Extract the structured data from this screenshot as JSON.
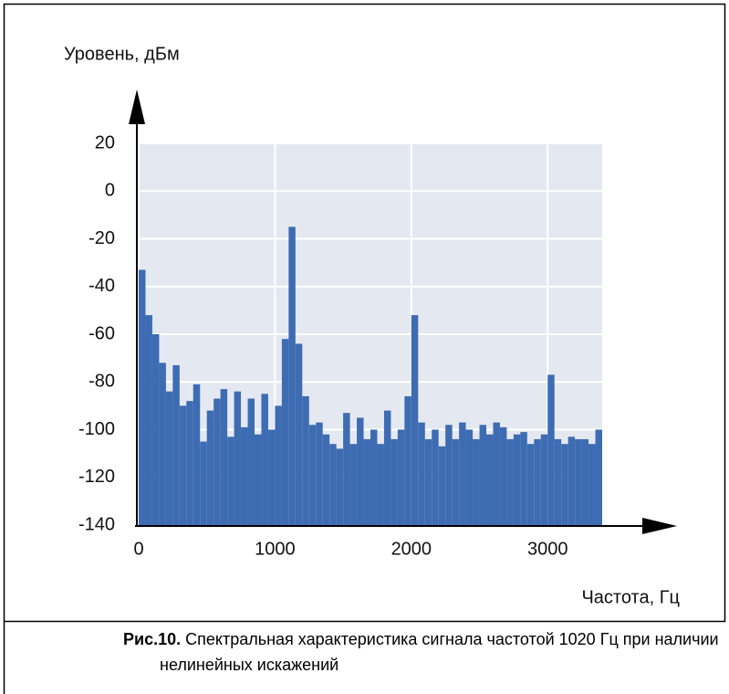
{
  "chart_data": {
    "type": "histogram",
    "y_label": "Уровень, дБм",
    "x_label": "Частота, Гц",
    "caption_label": "Рис.10.",
    "caption": "Спектральная характеристика сигнала частотой 1020 Гц при наличии нелинейных искажений",
    "bins": [
      0,
      50,
      100,
      150,
      200,
      250,
      300,
      350,
      400,
      450,
      500,
      550,
      600,
      650,
      700,
      750,
      800,
      850,
      900,
      950,
      1000,
      1050,
      1100,
      1150,
      1200,
      1250,
      1300,
      1350,
      1400,
      1450,
      1500,
      1550,
      1600,
      1650,
      1700,
      1750,
      1800,
      1850,
      1900,
      1950,
      2000,
      2050,
      2100,
      2150,
      2200,
      2250,
      2300,
      2350,
      2400,
      2450,
      2500,
      2550,
      2600,
      2650,
      2700,
      2750,
      2800,
      2850,
      2900,
      2950,
      3000,
      3050,
      3100,
      3150,
      3200,
      3250,
      3300,
      3350,
      3400
    ],
    "values": [
      -33,
      -52,
      -60,
      -72,
      -84,
      -73,
      -90,
      -88,
      -81,
      -105,
      -92,
      -87,
      -83,
      -103,
      -84,
      -99,
      -87,
      -102,
      -85,
      -100,
      -90,
      -62,
      -15,
      -64,
      -86,
      -98,
      -97,
      -102,
      -106,
      -108,
      -93,
      -106,
      -95,
      -104,
      -100,
      -106,
      -92,
      -104,
      -100,
      -86,
      -52,
      -97,
      -104,
      -100,
      -107,
      -98,
      -104,
      -97,
      -100,
      -104,
      -98,
      -102,
      -97,
      -99,
      -104,
      -102,
      -101,
      -106,
      -104,
      -102,
      -77,
      -104,
      -106,
      -103,
      -104,
      -104,
      -106,
      -100
    ],
    "color": "#3d6cb3",
    "xlim": [
      0,
      3400
    ],
    "xticks": [
      0,
      1000,
      2000,
      3000
    ],
    "ylim": [
      -140,
      20
    ],
    "yticks": [
      -140,
      -120,
      -100,
      -80,
      -60,
      -40,
      -20,
      0,
      20
    ],
    "grid": true
  }
}
